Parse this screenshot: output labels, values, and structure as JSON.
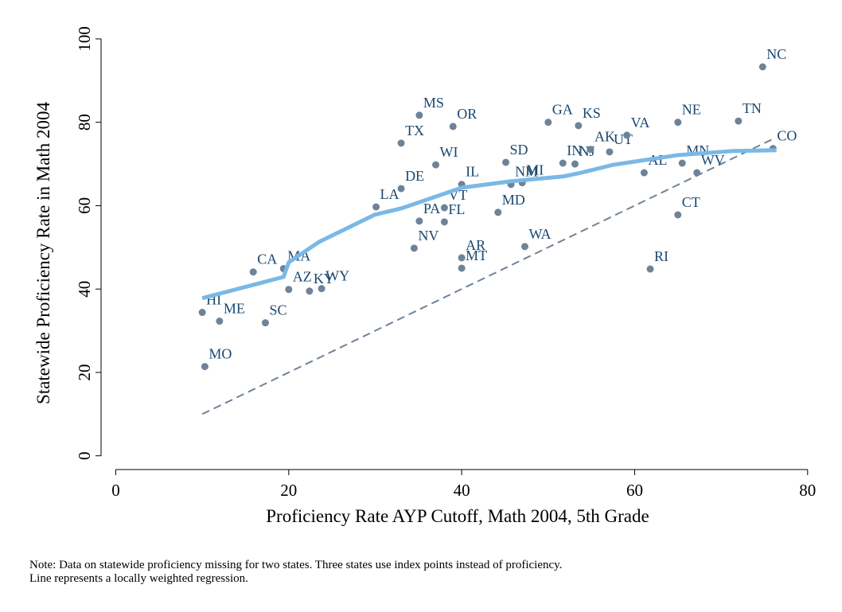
{
  "chart_data": {
    "type": "scatter",
    "xlabel": "Proficiency Rate AYP Cutoff, Math 2004, 5th Grade",
    "ylabel": "Statewide Proficiency Rate in Math 2004",
    "note": [
      "Note: Data on statewide proficiency missing for two states. Three states use index points instead of proficiency.",
      "Line represents a locally weighted regression."
    ],
    "labels": [
      "HI",
      "ME",
      "MO",
      "SC",
      "CA",
      "MA",
      "AZ",
      "KY",
      "WY",
      "LA",
      "DE",
      "TX",
      "MS",
      "WI",
      "OR",
      "IL",
      "PA",
      "VT",
      "FL",
      "NV",
      "AR",
      "MT",
      "MD",
      "SD",
      "NM",
      "MI",
      "WA",
      "GA",
      "KS",
      "IN",
      "NJ",
      "AK",
      "UT",
      "VA",
      "AL",
      "RI",
      "NE",
      "MN",
      "WV",
      "CT",
      "TN",
      "NC",
      "CO"
    ],
    "x": [
      10.0,
      12.0,
      10.3,
      17.3,
      15.9,
      19.4,
      20.0,
      22.4,
      23.8,
      30.1,
      33.0,
      33.0,
      35.1,
      37.0,
      39.0,
      40.0,
      35.1,
      38.0,
      38.0,
      34.5,
      40.0,
      40.0,
      44.2,
      45.1,
      45.7,
      47.0,
      47.3,
      50.0,
      53.5,
      51.7,
      53.1,
      54.9,
      57.1,
      59.1,
      61.1,
      61.8,
      65.0,
      65.5,
      67.2,
      65.0,
      72.0,
      74.8,
      76.0
    ],
    "y": [
      34.4,
      32.3,
      21.4,
      31.9,
      44.1,
      44.9,
      39.9,
      39.5,
      40.1,
      59.7,
      64.1,
      75.0,
      81.7,
      69.8,
      79.0,
      65.1,
      56.3,
      59.5,
      56.1,
      49.8,
      47.5,
      45.0,
      58.4,
      70.4,
      65.1,
      65.5,
      50.2,
      80.0,
      79.2,
      70.2,
      70.0,
      73.5,
      72.9,
      76.9,
      67.9,
      44.8,
      80.0,
      70.2,
      67.9,
      57.8,
      80.3,
      93.3,
      73.7
    ],
    "point_color": "#6f8398",
    "label_color": "#1a476f",
    "fit": {
      "x": [
        10,
        17,
        19.4,
        20,
        23.5,
        29.9,
        33.1,
        40,
        45.5,
        51.7,
        53.8,
        57.5,
        64.9,
        71.3,
        76.4
      ],
      "y": [
        37.8,
        41.6,
        42.9,
        46.4,
        51.3,
        57.8,
        59.4,
        64.3,
        65.8,
        67.0,
        67.9,
        69.8,
        72.1,
        73.1,
        73.3
      ],
      "color": "#7ab8e6"
    },
    "reference": {
      "x": [
        10,
        76
      ],
      "y": [
        10,
        76
      ],
      "color": "#6f8398"
    },
    "xlim": [
      -1.7,
      81.4
    ],
    "ylim": [
      -3.3,
      101.7
    ],
    "xticks": [
      0,
      20,
      40,
      60,
      80
    ],
    "yticks": [
      0,
      20,
      40,
      60,
      80,
      100
    ]
  }
}
